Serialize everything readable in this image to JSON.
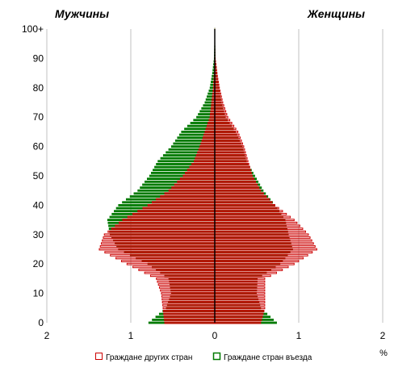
{
  "chart_data": {
    "type": "bar",
    "orientation": "horizontal",
    "subtype": "population-pyramid",
    "title": "",
    "side_labels": {
      "left": "Мужчины",
      "right": "Женщины"
    },
    "xlabel": "%",
    "x_ticks": [
      "2",
      "1",
      "0",
      "1",
      "2"
    ],
    "xlim": [
      -2,
      2
    ],
    "y_ticks": [
      "0",
      "10",
      "20",
      "30",
      "40",
      "50",
      "60",
      "70",
      "80",
      "90",
      "100+"
    ],
    "ylim": [
      0,
      100
    ],
    "grid": true,
    "legend_position": "bottom",
    "colors": {
      "foreign": "#cc0000",
      "entry": "#007a00",
      "overlap": "#8b3a0f",
      "axis": "#000000",
      "grid": "#c0c0c0"
    },
    "series": [
      {
        "name": "Граждане других стран",
        "key": "foreign"
      },
      {
        "name": "Граждане стран въезда",
        "key": "entry"
      }
    ],
    "bands": [
      {
        "age": 0,
        "m_foreign": 0.6,
        "m_entry": 0.79,
        "f_foreign": 0.55,
        "f_entry": 0.74
      },
      {
        "age": 5,
        "m_foreign": 0.62,
        "m_entry": 0.58,
        "f_foreign": 0.6,
        "f_entry": 0.55
      },
      {
        "age": 10,
        "m_foreign": 0.64,
        "m_entry": 0.52,
        "f_foreign": 0.6,
        "f_entry": 0.5
      },
      {
        "age": 15,
        "m_foreign": 0.7,
        "m_entry": 0.55,
        "f_foreign": 0.6,
        "f_entry": 0.51
      },
      {
        "age": 20,
        "m_foreign": 1.05,
        "m_entry": 0.8,
        "f_foreign": 0.95,
        "f_entry": 0.78
      },
      {
        "age": 25,
        "m_foreign": 1.38,
        "m_entry": 1.15,
        "f_foreign": 1.22,
        "f_entry": 0.93
      },
      {
        "age": 30,
        "m_foreign": 1.32,
        "m_entry": 1.25,
        "f_foreign": 1.12,
        "f_entry": 0.88
      },
      {
        "age": 35,
        "m_foreign": 1.1,
        "m_entry": 1.28,
        "f_foreign": 0.95,
        "f_entry": 0.84
      },
      {
        "age": 40,
        "m_foreign": 0.8,
        "m_entry": 1.15,
        "f_foreign": 0.72,
        "f_entry": 0.72
      },
      {
        "age": 45,
        "m_foreign": 0.55,
        "m_entry": 0.92,
        "f_foreign": 0.55,
        "f_entry": 0.58
      },
      {
        "age": 50,
        "m_foreign": 0.38,
        "m_entry": 0.78,
        "f_foreign": 0.45,
        "f_entry": 0.48
      },
      {
        "age": 55,
        "m_foreign": 0.25,
        "m_entry": 0.68,
        "f_foreign": 0.4,
        "f_entry": 0.38
      },
      {
        "age": 60,
        "m_foreign": 0.18,
        "m_entry": 0.52,
        "f_foreign": 0.35,
        "f_entry": 0.33
      },
      {
        "age": 65,
        "m_foreign": 0.12,
        "m_entry": 0.4,
        "f_foreign": 0.28,
        "f_entry": 0.25
      },
      {
        "age": 70,
        "m_foreign": 0.06,
        "m_entry": 0.22,
        "f_foreign": 0.16,
        "f_entry": 0.13
      },
      {
        "age": 75,
        "m_foreign": 0.04,
        "m_entry": 0.12,
        "f_foreign": 0.1,
        "f_entry": 0.08
      },
      {
        "age": 80,
        "m_foreign": 0.02,
        "m_entry": 0.06,
        "f_foreign": 0.06,
        "f_entry": 0.05
      },
      {
        "age": 85,
        "m_foreign": 0.01,
        "m_entry": 0.03,
        "f_foreign": 0.03,
        "f_entry": 0.03
      },
      {
        "age": 90,
        "m_foreign": 0.005,
        "m_entry": 0.01,
        "f_foreign": 0.01,
        "f_entry": 0.01
      },
      {
        "age": 95,
        "m_foreign": 0.003,
        "m_entry": 0.005,
        "f_foreign": 0.005,
        "f_entry": 0.005
      },
      {
        "age": 100,
        "m_foreign": 0.002,
        "m_entry": 0.003,
        "f_foreign": 0.003,
        "f_entry": 0.003
      }
    ]
  }
}
